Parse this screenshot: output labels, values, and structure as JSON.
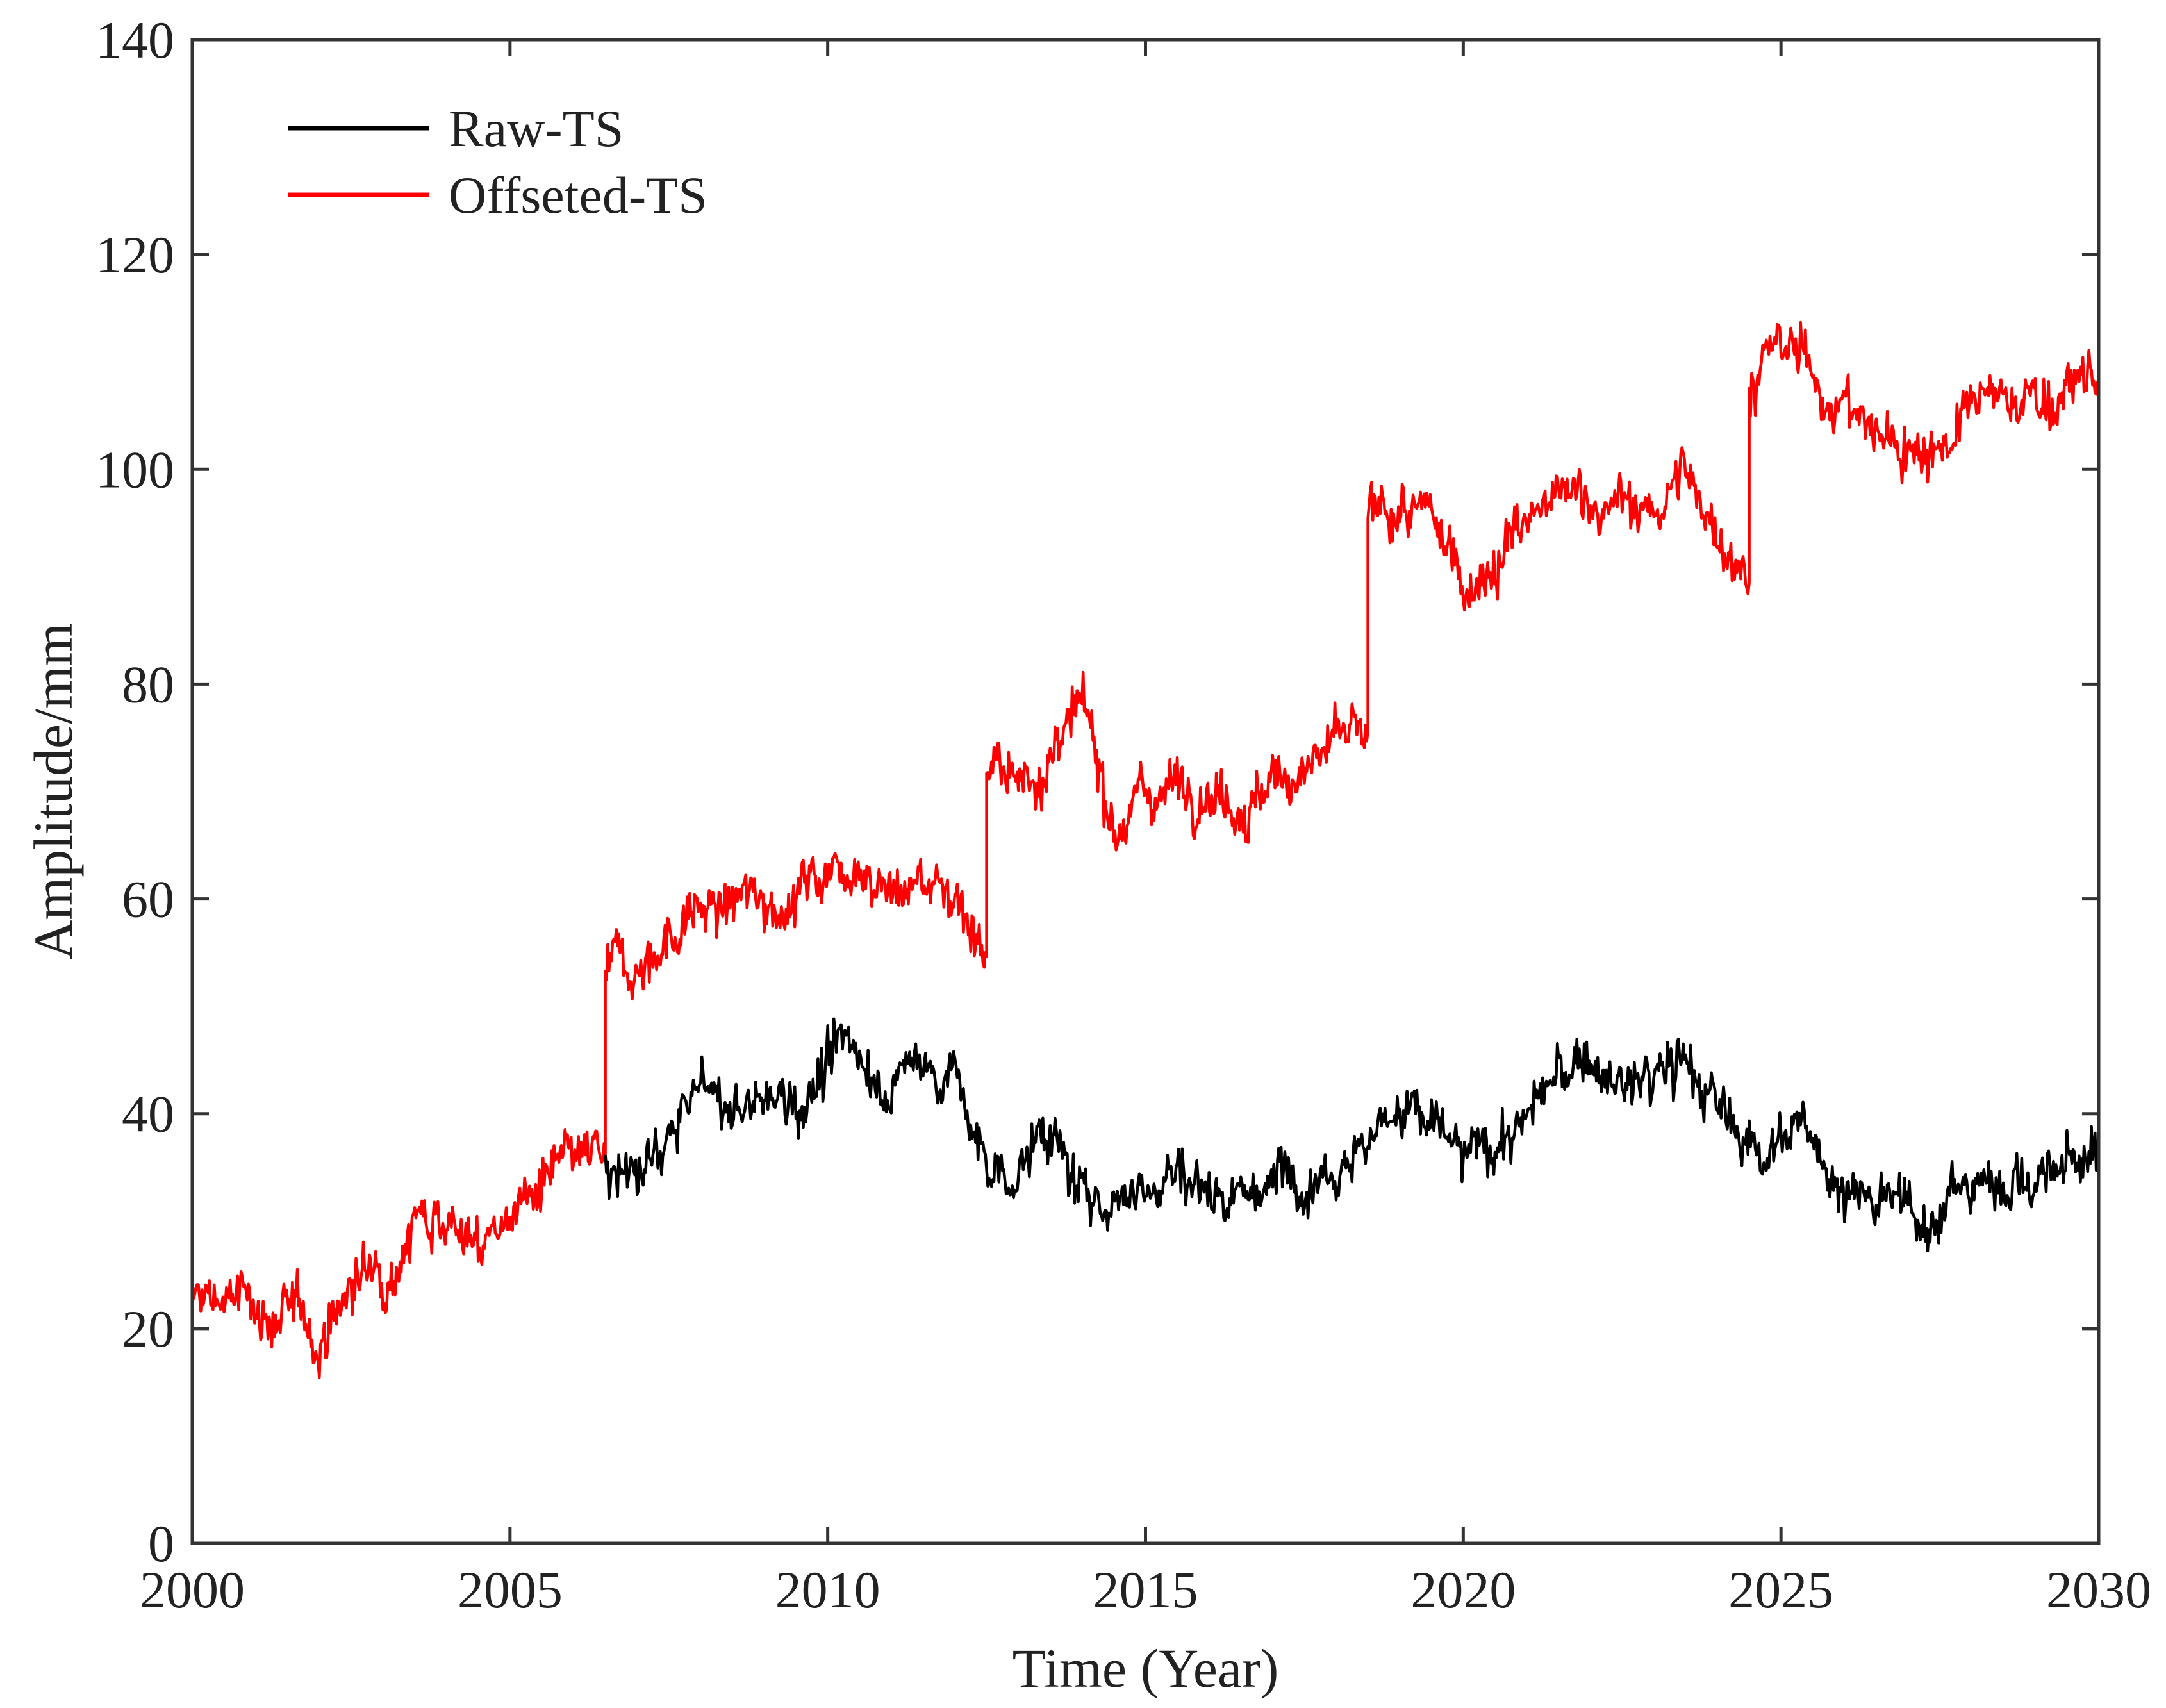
{
  "chart_data": {
    "type": "line",
    "title": "",
    "xlabel": "Time (Year)",
    "ylabel": "Amplitude/mm",
    "xlim": [
      2000,
      2030
    ],
    "ylim": [
      0,
      140
    ],
    "xticks": [
      2000,
      2005,
      2010,
      2015,
      2020,
      2025,
      2030
    ],
    "yticks": [
      0,
      20,
      40,
      60,
      80,
      100,
      120,
      140
    ],
    "grid": false,
    "legend": {
      "placement": "top-left"
    },
    "offsets": [
      {
        "year": 2006.5,
        "step": 19
      },
      {
        "year": 2012.5,
        "step": 17
      },
      {
        "year": 2018.5,
        "step": 20
      },
      {
        "year": 2024.5,
        "step": 17
      }
    ],
    "series": [
      {
        "name": "Raw-TS",
        "color": "#000000",
        "x": [
          2006.5,
          2007.0,
          2007.5,
          2008.0,
          2008.5,
          2009.0,
          2009.5,
          2010.0,
          2010.5,
          2011.0,
          2011.5,
          2012.0,
          2012.5,
          2013.0,
          2013.5,
          2014.0,
          2014.5,
          2015.0,
          2015.5,
          2016.0,
          2016.5,
          2017.0,
          2017.5,
          2018.0,
          2018.5,
          2019.0,
          2019.5,
          2020.0,
          2020.5,
          2021.0,
          2021.5,
          2022.0,
          2022.5,
          2023.0,
          2023.5,
          2024.0,
          2024.5,
          2025.0,
          2025.5,
          2026.0,
          2026.5,
          2027.0,
          2027.5,
          2028.0,
          2028.5,
          2029.0,
          2029.5,
          2030.0
        ],
        "values": [
          34,
          33,
          38,
          42,
          40,
          41,
          42,
          44,
          46,
          43,
          45,
          44,
          34,
          35,
          39,
          31,
          33,
          34,
          35,
          33,
          34,
          33,
          36,
          37,
          38,
          41,
          39,
          35,
          37,
          40,
          43,
          45,
          42,
          43,
          45,
          40,
          37,
          39,
          37,
          34,
          31,
          30,
          32,
          33,
          35,
          34,
          35,
          36
        ]
      },
      {
        "name": "Offseted-TS",
        "color": "#ff0000",
        "x": [
          2000.0,
          2000.5,
          2001.0,
          2001.5,
          2002.0,
          2002.5,
          2003.0,
          2003.5,
          2004.0,
          2004.5,
          2005.0,
          2005.5,
          2006.0,
          2006.5,
          2006.5,
          2007.0,
          2007.5,
          2008.0,
          2008.5,
          2009.0,
          2009.5,
          2010.0,
          2010.5,
          2011.0,
          2011.5,
          2012.0,
          2012.5,
          2012.5,
          2013.0,
          2013.5,
          2014.0,
          2014.5,
          2015.0,
          2015.5,
          2016.0,
          2016.5,
          2017.0,
          2017.5,
          2018.0,
          2018.5,
          2018.5,
          2019.0,
          2019.5,
          2020.0,
          2020.5,
          2021.0,
          2021.5,
          2022.0,
          2022.5,
          2023.0,
          2023.5,
          2024.0,
          2024.5,
          2024.5,
          2025.0,
          2025.5,
          2026.0,
          2026.5,
          2027.0,
          2027.5,
          2028.0,
          2028.5,
          2029.0,
          2029.5,
          2030.0
        ],
        "values": [
          22,
          23,
          22,
          21,
          19,
          24,
          26,
          31,
          32,
          27,
          31,
          33,
          34,
          35,
          52,
          54,
          57,
          59,
          59,
          60,
          61,
          63,
          65,
          61,
          62,
          61,
          56,
          73,
          70,
          74,
          76,
          68,
          70,
          71,
          72,
          70,
          70,
          73,
          74,
          74,
          94,
          96,
          94,
          90,
          92,
          95,
          96,
          98,
          96,
          96,
          99,
          95,
          91,
          108,
          111,
          109,
          106,
          103,
          102,
          103,
          105,
          106,
          107,
          107,
          108
        ]
      }
    ]
  }
}
